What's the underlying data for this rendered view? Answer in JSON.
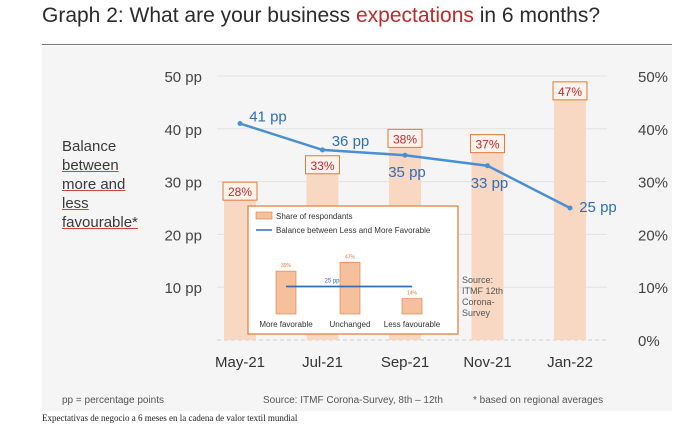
{
  "title_parts": {
    "pre": "Graph 2: What are your business ",
    "highlight": "expectations",
    "post": " in 6 months?"
  },
  "left_title_lines": [
    "Balance",
    "between",
    "more and",
    "less",
    "favourable*"
  ],
  "footer": {
    "left": "pp = percentage points",
    "center": "Source: ITMF Corona-Survey, 8th – 12th",
    "right": "* based on regional averages"
  },
  "caption": "Expectativas de negocio a 6 meses en la cadena de valor textil mundial",
  "colors": {
    "bar_fill": "#f8d7c3",
    "bar_label_border": "#e07b39",
    "bar_label_text": "#c0282d",
    "line": "#4a8fd4",
    "line_label": "#2f6fb8",
    "axis_text": "#444444",
    "title_highlight": "#c0282d",
    "inset_bar": "#f6c09d",
    "inset_line": "#2f6fb8"
  },
  "chart_data": {
    "type": "bar",
    "categories": [
      "May-21",
      "Jul-21",
      "Sep-21",
      "Nov-21",
      "Jan-22"
    ],
    "series": [
      {
        "type": "bar",
        "axis": "right",
        "values": [
          28,
          33,
          38,
          37,
          47
        ],
        "labels": [
          "28%",
          "33%",
          "38%",
          "37%",
          "47%"
        ]
      },
      {
        "type": "line",
        "axis": "left",
        "values": [
          41,
          36,
          35,
          33,
          25
        ],
        "labels": [
          "41 pp",
          "36 pp",
          "35 pp",
          "33 pp",
          "25 pp"
        ]
      }
    ],
    "left_axis": {
      "ticks": [
        10,
        20,
        30,
        40,
        50
      ],
      "tick_labels": [
        "10 pp",
        "20 pp",
        "30 pp",
        "40 pp",
        "50 pp"
      ],
      "ylim": [
        0,
        50
      ]
    },
    "right_axis": {
      "ticks": [
        0,
        10,
        20,
        30,
        40,
        50
      ],
      "tick_labels": [
        "0%",
        "10%",
        "20%",
        "30%",
        "40%",
        "50%"
      ],
      "ylim": [
        0,
        50
      ]
    },
    "grid": true,
    "inset": {
      "legend": [
        "Share of respondants",
        "Balance between Less and More Favorable"
      ],
      "categories": [
        "More favorable",
        "Unchanged",
        "Less favourable"
      ],
      "values": [
        39,
        47,
        14
      ],
      "labels": [
        "39%",
        "47%",
        "14%"
      ],
      "balance_label": "25 pp",
      "balance_value": 25,
      "source_lines": [
        "Source:",
        "ITMF 12th",
        "Corona-",
        "Survey"
      ]
    }
  }
}
